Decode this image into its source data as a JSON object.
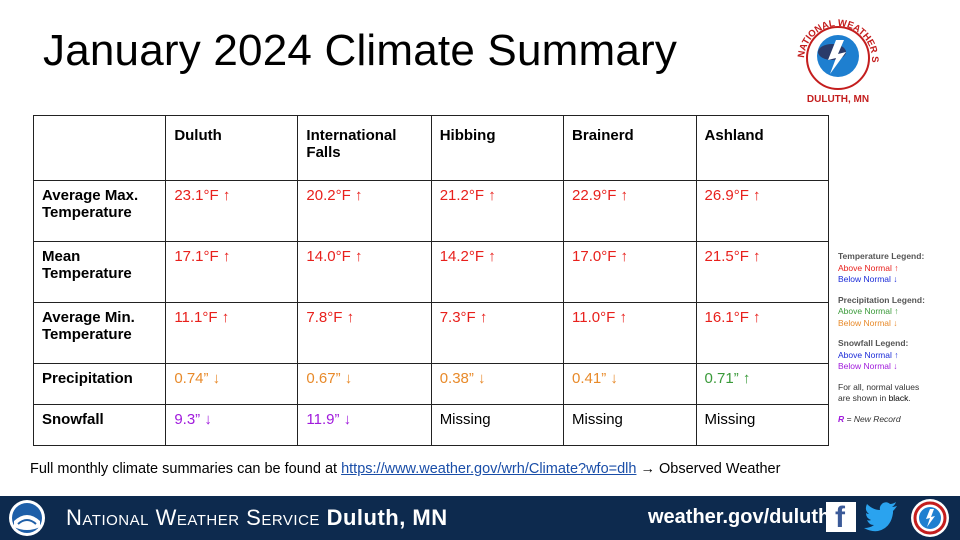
{
  "title": "January 2024 Climate Summary",
  "logo": {
    "arc_top": "NATIONAL WEATHER SERVICE",
    "bottom": "DULUTH, MN"
  },
  "table": {
    "headers": [
      "Duluth",
      "International Falls",
      "Hibbing",
      "Brainerd",
      "Ashland"
    ],
    "rows": [
      {
        "label": "Average Max. Temperature",
        "cells": [
          {
            "text": "23.1°F ↑",
            "color": "red"
          },
          {
            "text": "20.2°F ↑",
            "color": "red"
          },
          {
            "text": "21.2°F ↑",
            "color": "red"
          },
          {
            "text": "22.9°F ↑",
            "color": "red"
          },
          {
            "text": "26.9°F ↑",
            "color": "red"
          }
        ]
      },
      {
        "label": "Mean Temperature",
        "cells": [
          {
            "text": "17.1°F ↑",
            "color": "red"
          },
          {
            "text": "14.0°F ↑",
            "color": "red"
          },
          {
            "text": "14.2°F ↑",
            "color": "red"
          },
          {
            "text": "17.0°F ↑",
            "color": "red"
          },
          {
            "text": "21.5°F ↑",
            "color": "red"
          }
        ]
      },
      {
        "label": "Average Min. Temperature",
        "cells": [
          {
            "text": "11.1°F ↑",
            "color": "red"
          },
          {
            "text": "7.8°F ↑",
            "color": "red"
          },
          {
            "text": "7.3°F ↑",
            "color": "red"
          },
          {
            "text": "11.0°F ↑",
            "color": "red"
          },
          {
            "text": "16.1°F ↑",
            "color": "red"
          }
        ]
      },
      {
        "label": "Precipitation",
        "cells": [
          {
            "text": "0.74” ↓",
            "color": "orange"
          },
          {
            "text": "0.67” ↓",
            "color": "orange"
          },
          {
            "text": "0.38” ↓",
            "color": "orange"
          },
          {
            "text": "0.41” ↓",
            "color": "orange"
          },
          {
            "text": "0.71” ↑",
            "color": "green"
          }
        ]
      },
      {
        "label": "Snowfall",
        "cells": [
          {
            "text": "9.3” ↓",
            "color": "purple"
          },
          {
            "text": "11.9” ↓",
            "color": "purple"
          },
          {
            "text": "Missing",
            "color": "black"
          },
          {
            "text": "Missing",
            "color": "black"
          },
          {
            "text": "Missing",
            "color": "black"
          }
        ]
      }
    ]
  },
  "legend": {
    "temperature": {
      "title": "Temperature Legend:",
      "above": "Above Normal ↑",
      "below": "Below Normal ↓"
    },
    "precipitation": {
      "title": "Precipitation Legend:",
      "above": "Above Normal ↑",
      "below": "Below Normal ↓"
    },
    "snowfall": {
      "title": "Snowfall Legend:",
      "above": "Above Normal ↑",
      "below": "Below Normal ↓"
    },
    "normals_note_1": "For all, normal values",
    "normals_note_2": "are shown in ",
    "normals_note_black": "black",
    "new_record_r": "R",
    "new_record_text": " = New Record"
  },
  "footnote": {
    "text": "Full monthly  climate summaries can be found at ",
    "link": "https://www.weather.gov/wrh/Climate?wfo=dlh",
    "after": "  → Observed Weather"
  },
  "footer": {
    "org": "National Weather Service",
    "office": "Duluth, MN",
    "site": "weather.gov/duluth"
  },
  "colors": {
    "red": "#e8201c",
    "orange": "#e88a2a",
    "green": "#3a9a3a",
    "purple": "#a01adc",
    "blue": "#1a2ad8",
    "footer": "#0d2a4e"
  }
}
